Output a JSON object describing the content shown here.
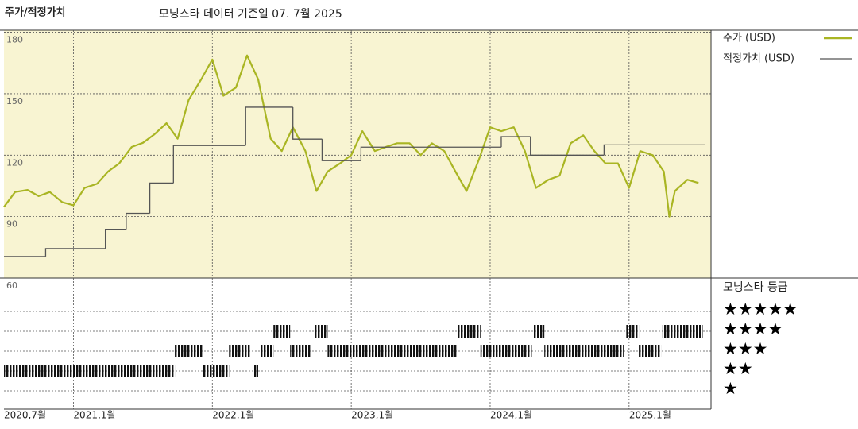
{
  "chart_data": [
    {
      "type": "line",
      "title": "주가/적정가치",
      "subtitle": "모닝스타 데이터 기준일 07. 7월 2025",
      "xlim": [
        2020.5,
        2025.59
      ],
      "ylim": [
        60,
        181
      ],
      "xticks": [
        {
          "value": 2020.5,
          "label": "2020,7월"
        },
        {
          "value": 2021,
          "label": "2021,1월"
        },
        {
          "value": 2022,
          "label": "2022,1월"
        },
        {
          "value": 2023,
          "label": "2023,1월"
        },
        {
          "value": 2024,
          "label": "2024,1월"
        },
        {
          "value": 2025,
          "label": "2025,1월"
        }
      ],
      "yticks": [
        60,
        90,
        120,
        150,
        180
      ],
      "grid": true,
      "series": [
        {
          "name": "주가 (USD)",
          "color": "#a9b523",
          "x": [
            2020.5,
            2020.58,
            2020.67,
            2020.75,
            2020.83,
            2020.92,
            2021,
            2021.08,
            2021.17,
            2021.25,
            2021.33,
            2021.42,
            2021.5,
            2021.58,
            2021.67,
            2021.75,
            2021.83,
            2021.92,
            2022,
            2022.08,
            2022.17,
            2022.25,
            2022.33,
            2022.42,
            2022.5,
            2022.58,
            2022.67,
            2022.75,
            2022.83,
            2022.92,
            2023,
            2023.08,
            2023.17,
            2023.25,
            2023.33,
            2023.42,
            2023.5,
            2023.58,
            2023.67,
            2023.75,
            2023.83,
            2023.92,
            2024,
            2024.08,
            2024.17,
            2024.25,
            2024.33,
            2024.42,
            2024.5,
            2024.58,
            2024.67,
            2024.75,
            2024.83,
            2024.92,
            2025,
            2025.08,
            2025.17,
            2025.25,
            2025.29,
            2025.33,
            2025.42,
            2025.5
          ],
          "values": [
            94.7,
            102,
            103,
            100,
            102,
            97,
            95.5,
            104,
            106,
            112,
            116,
            124,
            126,
            130,
            135.6,
            128,
            147,
            157,
            166.7,
            149,
            153,
            168.7,
            157,
            128,
            122,
            133.6,
            122,
            102.5,
            112,
            116,
            120,
            131.7,
            122,
            124,
            125.8,
            125.8,
            120,
            125.8,
            122,
            112,
            102.5,
            118,
            133.6,
            131.7,
            133.6,
            122,
            104,
            108,
            110,
            125.8,
            129.7,
            122,
            116,
            116,
            104,
            122,
            120,
            112,
            90,
            102.5,
            108,
            106.4
          ]
        },
        {
          "name": "적정가치 (USD)",
          "color": "#555555",
          "step": "post",
          "x": [
            2020.5,
            2020.8,
            2021.23,
            2021.38,
            2021.55,
            2021.72,
            2022.24,
            2022.58,
            2022.79,
            2023.07,
            2024.08,
            2024.29,
            2024.82,
            2025.55
          ],
          "values": [
            70.5,
            74.4,
            83.8,
            91.6,
            106.4,
            124.7,
            143.4,
            127.8,
            117.3,
            123.9,
            129,
            120,
            125,
            125
          ]
        }
      ]
    },
    {
      "type": "rating",
      "title": "모닝스타 등급",
      "color": "#111111",
      "xlim": [
        2020.5,
        2025.59
      ],
      "yticks": [
        {
          "value": 5,
          "label": "★★★★★"
        },
        {
          "value": 4,
          "label": "★★★★"
        },
        {
          "value": 3,
          "label": "★★★"
        },
        {
          "value": 2,
          "label": "★★"
        },
        {
          "value": 1,
          "label": "★"
        }
      ],
      "x": [
        2020.5,
        2021.73,
        2021.93,
        2022.12,
        2022.29,
        2022.34,
        2022.44,
        2022.56,
        2022.73,
        2022.83,
        2023.76,
        2023.93,
        2024.31,
        2024.39,
        2024.98,
        2025.07,
        2025.24
      ],
      "x_end": [
        2021.73,
        2021.93,
        2022.12,
        2022.27,
        2022.33,
        2022.44,
        2022.56,
        2022.71,
        2022.83,
        2023.76,
        2023.93,
        2024.3,
        2024.39,
        2024.96,
        2025.07,
        2025.23,
        2025.53
      ],
      "values": [
        2,
        3,
        2,
        3,
        2,
        3,
        4,
        3,
        4,
        3,
        4,
        3,
        4,
        3,
        4,
        3,
        4
      ]
    }
  ]
}
